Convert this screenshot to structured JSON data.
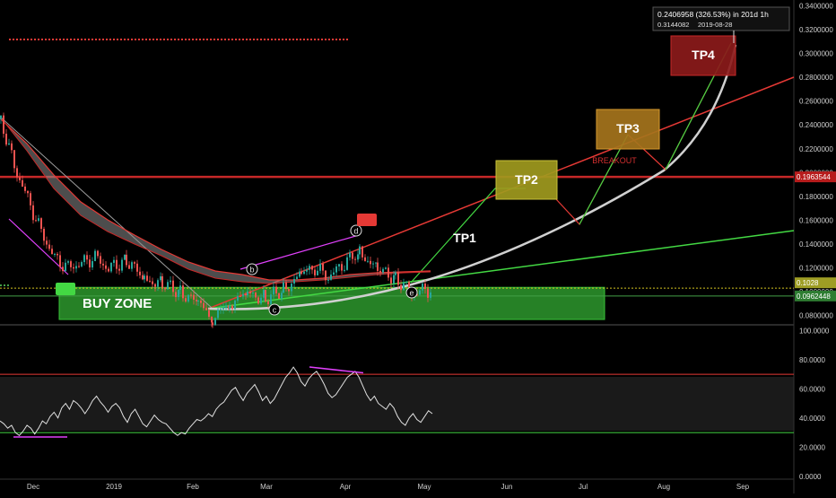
{
  "chart_data": [
    {
      "type": "line",
      "role": "price",
      "title": "",
      "xlabel": "",
      "ylabel": "",
      "x_tick_labels": [
        "Dec",
        "2019",
        "Feb",
        "Mar",
        "Apr",
        "May",
        "Jun",
        "Jul",
        "Aug",
        "Sep"
      ],
      "y_tick_labels": [
        "0.3400000",
        "0.3200000",
        "0.3000000",
        "0.2800000",
        "0.2600000",
        "0.2400000",
        "0.2200000",
        "0.2000000",
        "0.1800000",
        "0.1600000",
        "0.1400000",
        "0.1200000",
        "0.1000000",
        "0.0800000"
      ],
      "ylim": [
        0.072,
        0.345
      ],
      "grid": false,
      "price_tags": [
        {
          "label": "0.1963544",
          "value": 0.1963544,
          "color": "#b71c1c"
        },
        {
          "label": "0.0962448",
          "value": 0.0962448,
          "color": "#2e7d32"
        },
        {
          "label": "0.1028",
          "value": 0.1028,
          "color": "#9e9d24"
        }
      ],
      "measure_box": {
        "line1": "0.2406958 (326.53%) in 201d 1h",
        "line2": "0.3144082",
        "line3": "2019-08-28"
      },
      "targets": [
        {
          "label": "TP1",
          "value": 0.135
        },
        {
          "label": "TP2",
          "value": 0.19
        },
        {
          "label": "TP3",
          "value": 0.233
        },
        {
          "label": "TP4",
          "value": 0.303
        }
      ],
      "zone_label": "BUY ZONE",
      "breakout_label": "BREAKOUT",
      "wave_labels": [
        "b",
        "c",
        "d",
        "e"
      ],
      "colors": {
        "up": "#26a69a",
        "down": "#ef5350",
        "resistance": "#d32f2f",
        "support": "#43a047",
        "tp_line": "#4caf50"
      }
    },
    {
      "type": "line",
      "role": "oscillator",
      "y_tick_labels": [
        "100.0000",
        "80.0000",
        "60.0000",
        "40.0000",
        "20.0000",
        "0.0000"
      ],
      "ylim": [
        -2,
        104
      ],
      "bands": {
        "upper": 70,
        "lower": 30
      },
      "series": [
        {
          "values": [
            38,
            36,
            33,
            35,
            30,
            28,
            31,
            35,
            33,
            29,
            33,
            38,
            36,
            41,
            44,
            40,
            47,
            50,
            46,
            52,
            50,
            47,
            43,
            47,
            52,
            55,
            51,
            48,
            44,
            48,
            50,
            47,
            41,
            37,
            43,
            46,
            41,
            36,
            34,
            38,
            42,
            39,
            37,
            36,
            33,
            30,
            28,
            30,
            29,
            33,
            36,
            39,
            38,
            40,
            43,
            41,
            46,
            49,
            51,
            55,
            59,
            61,
            56,
            52,
            57,
            60,
            63,
            58,
            52,
            55,
            50,
            53,
            58,
            63,
            68,
            71,
            75,
            71,
            65,
            62,
            67,
            70,
            72,
            68,
            63,
            57,
            54,
            56,
            60,
            64,
            68,
            70,
            72,
            68,
            62,
            56,
            52,
            55,
            50,
            48,
            46,
            50,
            47,
            41,
            37,
            35,
            40,
            43,
            39,
            37,
            41,
            45,
            43
          ]
        }
      ]
    }
  ]
}
